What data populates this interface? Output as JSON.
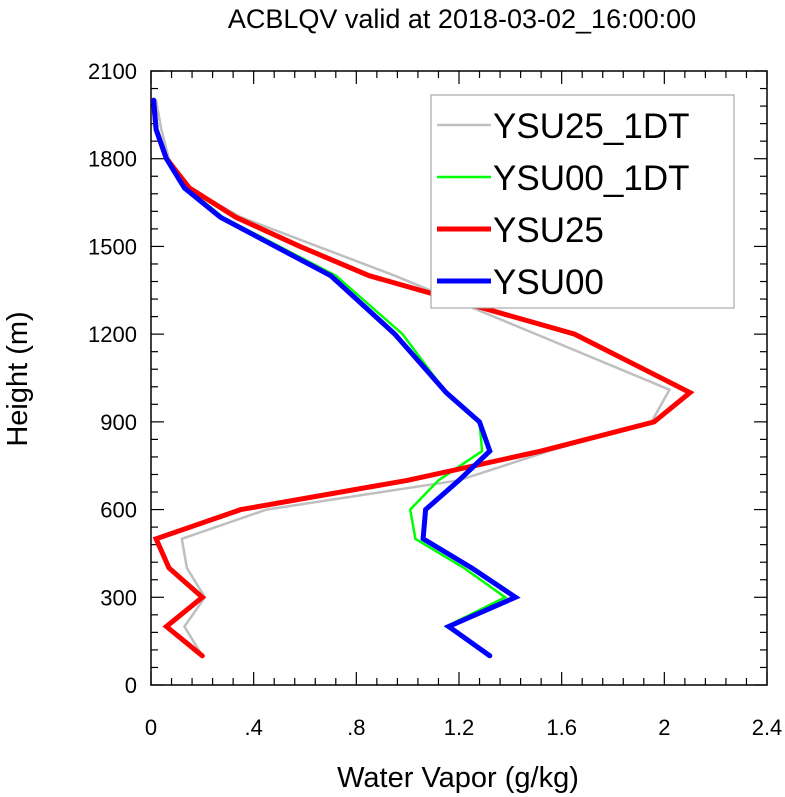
{
  "chart_data": {
    "type": "line",
    "title": "ACBLQV valid at 2018-03-02_16:00:00",
    "xlabel": "Water Vapor (g/kg)",
    "ylabel": "Height (m)",
    "xlim": [
      0,
      2.4
    ],
    "ylim": [
      0,
      2100
    ],
    "xticks": [
      0,
      0.4,
      0.8,
      1.2,
      1.6,
      2.0,
      2.4
    ],
    "xtick_labels": [
      "0",
      ".4",
      ".8",
      "1.2",
      "1.6",
      "2",
      "2.4"
    ],
    "yticks": [
      0,
      300,
      600,
      900,
      1200,
      1500,
      1800,
      2100
    ],
    "ytick_labels": [
      "0",
      "300",
      "600",
      "900",
      "1200",
      "1500",
      "1800",
      "2100"
    ],
    "legend_position": "top-right",
    "grid": false,
    "series": [
      {
        "name": "YSU25_1DT",
        "color": "#bfbfbf",
        "line_width": 2.5,
        "points": [
          [
            0.2,
            100
          ],
          [
            0.13,
            200
          ],
          [
            0.21,
            300
          ],
          [
            0.14,
            400
          ],
          [
            0.12,
            500
          ],
          [
            0.45,
            600
          ],
          [
            1.2,
            700
          ],
          [
            1.55,
            800
          ],
          [
            1.95,
            900
          ],
          [
            2.02,
            1010
          ],
          [
            1.5,
            1200
          ],
          [
            0.95,
            1400
          ],
          [
            0.35,
            1600
          ],
          [
            0.15,
            1700
          ],
          [
            0.07,
            1800
          ],
          [
            0.04,
            1900
          ],
          [
            0.02,
            2000
          ]
        ]
      },
      {
        "name": "YSU00_1DT",
        "color": "#00ff00",
        "line_width": 2.5,
        "points": [
          [
            1.32,
            100
          ],
          [
            1.15,
            200
          ],
          [
            1.38,
            300
          ],
          [
            1.22,
            400
          ],
          [
            1.03,
            500
          ],
          [
            1.01,
            600
          ],
          [
            1.12,
            700
          ],
          [
            1.29,
            800
          ],
          [
            1.28,
            900
          ],
          [
            1.15,
            1000
          ],
          [
            0.98,
            1200
          ],
          [
            0.72,
            1400
          ],
          [
            0.28,
            1600
          ],
          [
            0.14,
            1700
          ],
          [
            0.06,
            1800
          ],
          [
            0.02,
            1900
          ],
          [
            0.01,
            2000
          ]
        ]
      },
      {
        "name": "YSU25",
        "color": "#ff0000",
        "line_width": 5,
        "points": [
          [
            0.2,
            100
          ],
          [
            0.06,
            200
          ],
          [
            0.2,
            300
          ],
          [
            0.07,
            400
          ],
          [
            0.02,
            500
          ],
          [
            0.35,
            600
          ],
          [
            1.0,
            700
          ],
          [
            1.52,
            800
          ],
          [
            1.96,
            900
          ],
          [
            2.1,
            1000
          ],
          [
            1.65,
            1200
          ],
          [
            0.85,
            1400
          ],
          [
            0.58,
            1500
          ],
          [
            0.33,
            1600
          ],
          [
            0.15,
            1700
          ],
          [
            0.06,
            1800
          ],
          [
            0.02,
            1900
          ],
          [
            0.01,
            2000
          ]
        ]
      },
      {
        "name": "YSU00",
        "color": "#0000ff",
        "line_width": 5,
        "points": [
          [
            1.32,
            100
          ],
          [
            1.16,
            200
          ],
          [
            1.42,
            300
          ],
          [
            1.25,
            400
          ],
          [
            1.06,
            500
          ],
          [
            1.07,
            600
          ],
          [
            1.2,
            700
          ],
          [
            1.32,
            800
          ],
          [
            1.28,
            900
          ],
          [
            1.15,
            1000
          ],
          [
            0.95,
            1200
          ],
          [
            0.7,
            1400
          ],
          [
            0.27,
            1600
          ],
          [
            0.13,
            1700
          ],
          [
            0.06,
            1800
          ],
          [
            0.02,
            1900
          ],
          [
            0.01,
            2000
          ]
        ]
      }
    ]
  }
}
